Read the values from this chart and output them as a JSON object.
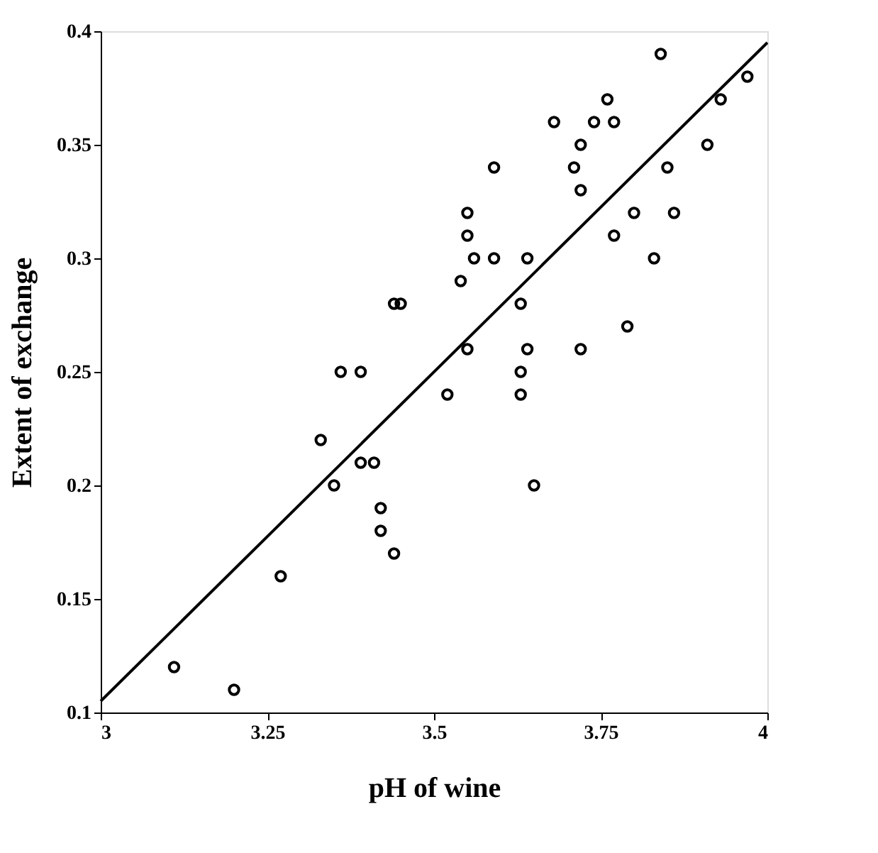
{
  "chart_data": {
    "type": "scatter",
    "xlabel": "pH of wine",
    "ylabel": "Extent of exchange",
    "xlim": [
      3,
      4
    ],
    "xticks": [
      3,
      3.25,
      3.5,
      3.75,
      4
    ],
    "ylim": [
      0.1,
      0.4
    ],
    "yticks": [
      0.1,
      0.15,
      0.2,
      0.25,
      0.3,
      0.35,
      0.4
    ],
    "grid": false,
    "legend": false,
    "series": [
      {
        "color": "#000000",
        "marker": "circle",
        "x": [
          3.11,
          3.2,
          3.27,
          3.33,
          3.35,
          3.36,
          3.39,
          3.39,
          3.41,
          3.42,
          3.42,
          3.44,
          3.44,
          3.45,
          3.52,
          3.54,
          3.55,
          3.55,
          3.55,
          3.56,
          3.59,
          3.59,
          3.63,
          3.63,
          3.63,
          3.64,
          3.64,
          3.65,
          3.68,
          3.71,
          3.72,
          3.72,
          3.72,
          3.74,
          3.76,
          3.77,
          3.77,
          3.79,
          3.8,
          3.83,
          3.84,
          3.85,
          3.86,
          3.91,
          3.93,
          3.97
        ],
        "values": [
          0.12,
          0.11,
          0.16,
          0.22,
          0.2,
          0.25,
          0.25,
          0.21,
          0.21,
          0.19,
          0.18,
          0.17,
          0.28,
          0.28,
          0.24,
          0.29,
          0.26,
          0.32,
          0.31,
          0.3,
          0.3,
          0.34,
          0.28,
          0.25,
          0.24,
          0.3,
          0.26,
          0.2,
          0.36,
          0.34,
          0.35,
          0.33,
          0.26,
          0.36,
          0.37,
          0.36,
          0.31,
          0.27,
          0.32,
          0.3,
          0.39,
          0.34,
          0.32,
          0.35,
          0.37,
          0.38
        ]
      },
      {
        "type": "line",
        "color": "#000000",
        "line_style": "solid",
        "x": [
          3,
          4
        ],
        "values": [
          0.105,
          0.395
        ]
      }
    ]
  }
}
